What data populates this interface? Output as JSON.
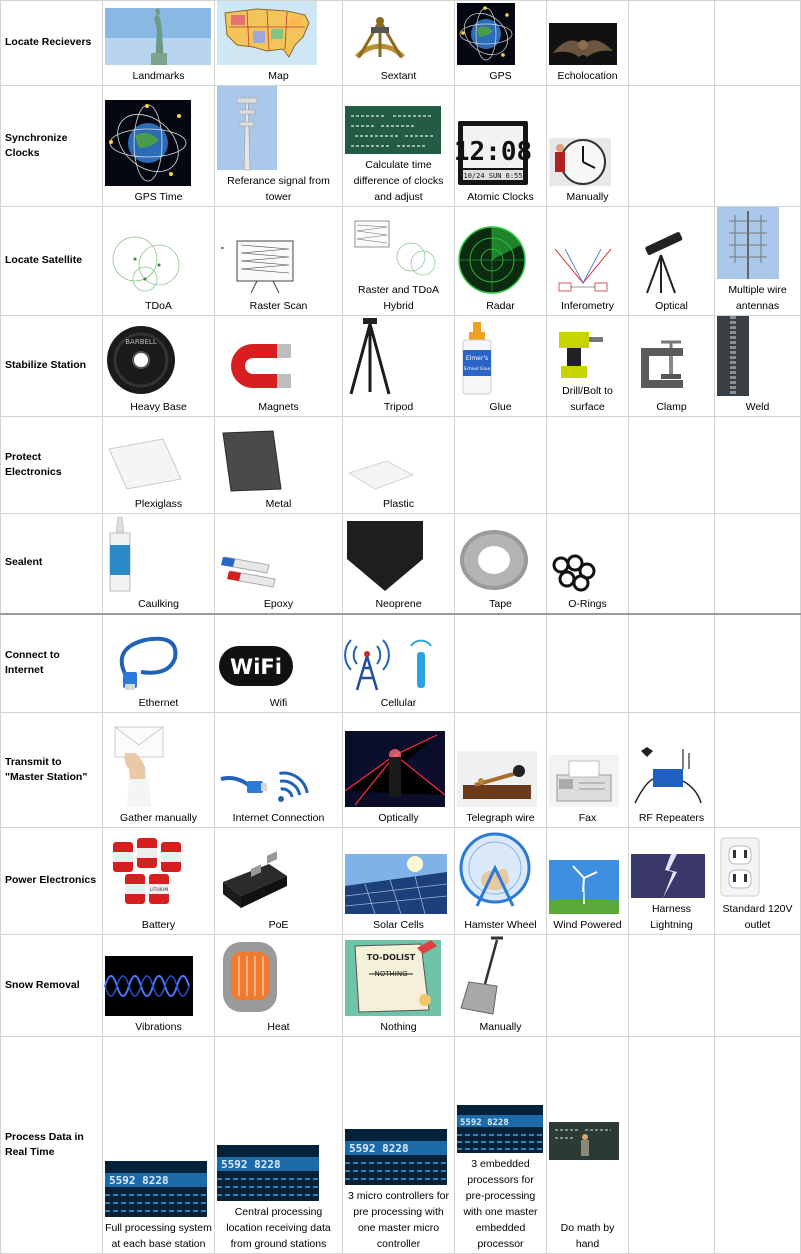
{
  "rows": [
    {
      "label": "Locate Recievers",
      "items": [
        "Landmarks",
        "Map",
        "Sextant",
        "GPS",
        "Echolocation"
      ]
    },
    {
      "label": "Synchronize Clocks",
      "items": [
        "GPS Time",
        "Referance signal from tower",
        "Calculate time difference of clocks and adjust",
        "Atomic Clocks",
        "Manually"
      ],
      "clock_display": "12:08",
      "clock_date": "10/24 SUN 6:55"
    },
    {
      "label": "Locate Satellite",
      "items": [
        "TDoA",
        "Raster Scan",
        "Raster and TDoA Hybrid",
        "Radar",
        "Inferometry",
        "Optical",
        "Multiple wire antennas"
      ]
    },
    {
      "label": "Stabilize Station",
      "items": [
        "Heavy Base",
        "Magnets",
        "Tripod",
        "Glue",
        "Drill/Bolt to surface",
        "Clamp",
        "Weld"
      ],
      "barbell_text": "BARBELL",
      "glue_brand": "Elmer's",
      "glue_label": "School Glue"
    },
    {
      "label": "Protect Electronics",
      "items": [
        "Plexiglass",
        "Metal",
        "Plastic"
      ]
    },
    {
      "label": "Sealent",
      "items": [
        "Caulking",
        "Epoxy",
        "Neoprene",
        "Tape",
        "O-Rings"
      ]
    },
    {
      "label": "Connect to Internet",
      "items": [
        "Ethernet",
        "Wifi",
        "Cellular"
      ],
      "wifi_logo": "WiFi"
    },
    {
      "label": "Transmit to \"Master Station\"",
      "items": [
        "Gather manually",
        "Internet Connection",
        "Optically",
        "Telegraph wire",
        "Fax",
        "RF Repeaters"
      ]
    },
    {
      "label": "Power Electronics",
      "items": [
        "Battery",
        "PoE",
        "Solar Cells",
        "Hamster Wheel",
        "Wind Powered",
        "Harness Lightning",
        "Standard 120V outlet"
      ],
      "battery_text": "LITHIUM"
    },
    {
      "label": "Snow Removal",
      "items": [
        "Vibrations",
        "Heat",
        "Nothing",
        "Manually"
      ],
      "todo_title": "TO-DOLIST",
      "todo_item": "NOTHING"
    },
    {
      "label": "Process Data in Real Time",
      "items": [
        "Full processing system at each base station",
        "Central processing location receiving data from ground stations",
        "3 micro controllers for pre processing with one master micro controller",
        "3 embedded processors for pre-processing with one master embedded processor",
        "Do math by hand"
      ],
      "screen_text": "5592 8228"
    }
  ],
  "colors": {
    "border": "#d4d4d4",
    "separator": "#9a9a9a",
    "text": "#000000",
    "accent_blue": "#2b6fd6",
    "accent_red": "#d02020"
  }
}
